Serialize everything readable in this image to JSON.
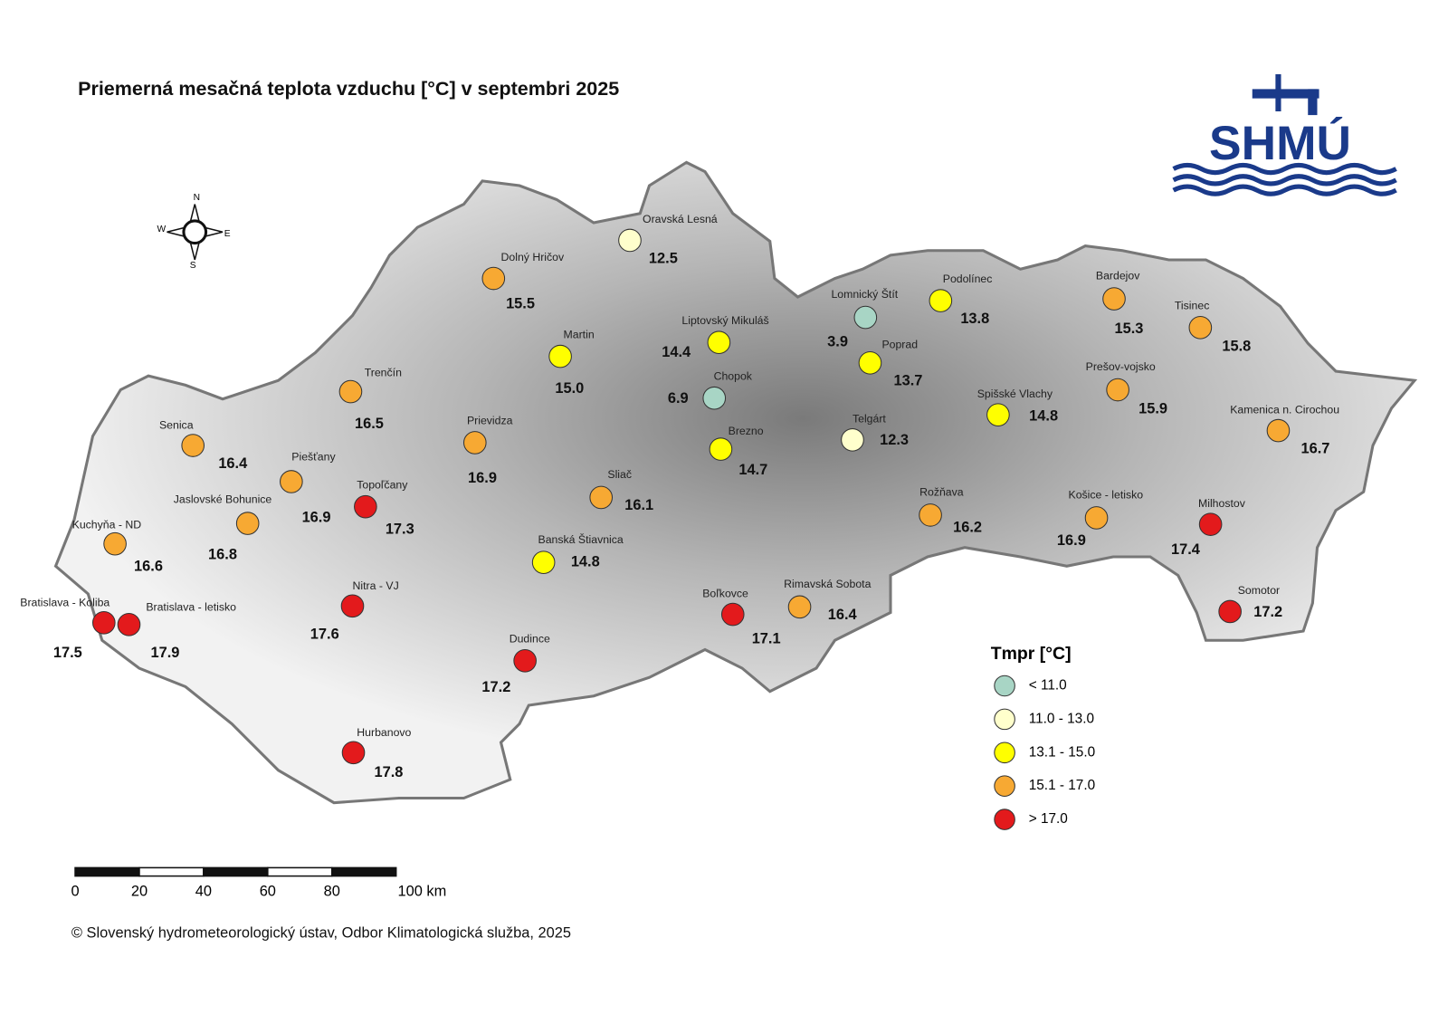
{
  "header": {
    "title": "Priemerná mesačná teplota vzduchu [°C] v septembri 2025",
    "logo": "SHMÚ"
  },
  "compass": {
    "n": "N",
    "e": "E",
    "s": "S",
    "w": "W"
  },
  "stations": [
    {
      "name": "Oravská Lesná",
      "value": "12.5",
      "color": "#ffffcc"
    },
    {
      "name": "Dolný Hričov",
      "value": "15.5",
      "color": "#f7a933"
    },
    {
      "name": "Martin",
      "value": "15.0",
      "color": "#ffff00"
    },
    {
      "name": "Liptovský Mikuláš",
      "value": "14.4",
      "color": "#ffff00"
    },
    {
      "name": "Lomnický Štít",
      "value": "3.9",
      "color": "#a8d5c5"
    },
    {
      "name": "Podolínec",
      "value": "13.8",
      "color": "#ffff00"
    },
    {
      "name": "Bardejov",
      "value": "15.3",
      "color": "#f7a933"
    },
    {
      "name": "Tisinec",
      "value": "15.8",
      "color": "#f7a933"
    },
    {
      "name": "Poprad",
      "value": "13.7",
      "color": "#ffff00"
    },
    {
      "name": "Chopok",
      "value": "6.9",
      "color": "#a8d5c5"
    },
    {
      "name": "Trenčín",
      "value": "16.5",
      "color": "#f7a933"
    },
    {
      "name": "Prešov-vojsko",
      "value": "15.9",
      "color": "#f7a933"
    },
    {
      "name": "Spišské Vlachy",
      "value": "14.8",
      "color": "#ffff00"
    },
    {
      "name": "Kamenica n. Cirochou",
      "value": "16.7",
      "color": "#f7a933"
    },
    {
      "name": "Senica",
      "value": "16.4",
      "color": "#f7a933"
    },
    {
      "name": "Prievidza",
      "value": "16.9",
      "color": "#f7a933"
    },
    {
      "name": "Telgárt",
      "value": "12.3",
      "color": "#ffffcc"
    },
    {
      "name": "Brezno",
      "value": "14.7",
      "color": "#ffff00"
    },
    {
      "name": "Piešťany",
      "value": "16.9",
      "color": "#f7a933"
    },
    {
      "name": "Sliač",
      "value": "16.1",
      "color": "#f7a933"
    },
    {
      "name": "Topoľčany",
      "value": "17.3",
      "color": "#e31a1c"
    },
    {
      "name": "Jaslovské Bohunice",
      "value": "16.8",
      "color": "#f7a933"
    },
    {
      "name": "Kuchyňa - ND",
      "value": "16.6",
      "color": "#f7a933"
    },
    {
      "name": "Rožňava",
      "value": "16.2",
      "color": "#f7a933"
    },
    {
      "name": "Košice - letisko",
      "value": "16.9",
      "color": "#f7a933"
    },
    {
      "name": "Milhostov",
      "value": "17.4",
      "color": "#e31a1c"
    },
    {
      "name": "Banská Štiavnica",
      "value": "14.8",
      "color": "#ffff00"
    },
    {
      "name": "Nitra - VJ",
      "value": "17.6",
      "color": "#e31a1c"
    },
    {
      "name": "Bratislava - Koliba",
      "value": "17.5",
      "color": "#e31a1c"
    },
    {
      "name": "Bratislava - letisko",
      "value": "17.9",
      "color": "#e31a1c"
    },
    {
      "name": "Boľkovce",
      "value": "17.1",
      "color": "#e31a1c"
    },
    {
      "name": "Rimavská Sobota",
      "value": "16.4",
      "color": "#f7a933"
    },
    {
      "name": "Somotor",
      "value": "17.2",
      "color": "#e31a1c"
    },
    {
      "name": "Dudince",
      "value": "17.2",
      "color": "#e31a1c"
    },
    {
      "name": "Hurbanovo",
      "value": "17.8",
      "color": "#e31a1c"
    }
  ],
  "legend": {
    "title": "Tmpr [°C]",
    "items": [
      {
        "label": "< 11.0",
        "color": "#a8d5c5"
      },
      {
        "label": "11.0 - 13.0",
        "color": "#ffffcc"
      },
      {
        "label": "13.1 - 15.0",
        "color": "#ffff00"
      },
      {
        "label": "15.1 - 17.0",
        "color": "#f7a933"
      },
      {
        "label": "> 17.0",
        "color": "#e31a1c"
      }
    ]
  },
  "scale_bar": {
    "labels": [
      "0",
      "20",
      "40",
      "60",
      "80",
      "100 km"
    ]
  },
  "footer": {
    "copyright": "© Slovenský hydrometeorologický ústav, Odbor Klimatologická služba, 2025"
  }
}
